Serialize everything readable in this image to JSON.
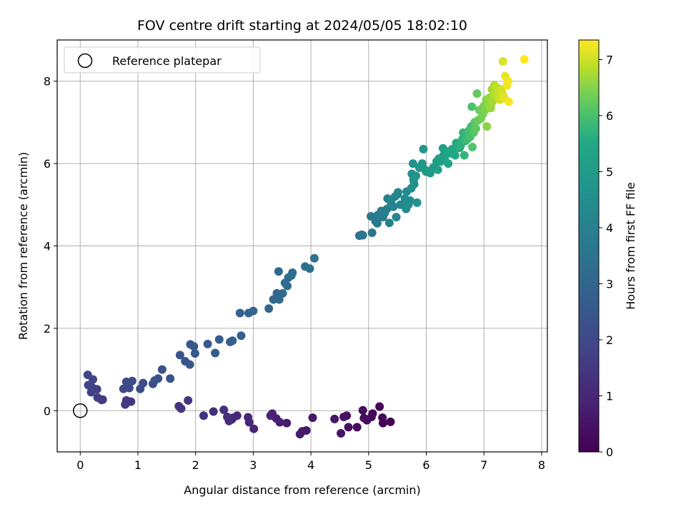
{
  "chart_data": {
    "type": "scatter",
    "title": "FOV centre drift starting at 2024/05/05 18:02:10",
    "xlabel": "Angular distance from reference (arcmin)",
    "ylabel": "Rotation from reference (arcmin)",
    "xlim": [
      -0.4,
      8.1
    ],
    "ylim": [
      -1.0,
      9.0
    ],
    "xticks": [
      "0",
      "1",
      "2",
      "3",
      "4",
      "5",
      "6",
      "7",
      "8"
    ],
    "yticks": [
      "0",
      "2",
      "4",
      "6",
      "8"
    ],
    "grid": true,
    "legend": {
      "placement": "top-left",
      "entries": [
        "Reference platepar"
      ]
    },
    "reference_point": {
      "x": 0,
      "y": 0,
      "label": "Reference platepar"
    },
    "colorbar": {
      "label": "Hours from first FF file",
      "range": [
        0,
        7.35
      ],
      "ticks": [
        "0",
        "1",
        "2",
        "3",
        "4",
        "5",
        "6",
        "7"
      ],
      "colormap": "viridis"
    },
    "series": [
      {
        "points": [
          [
            5.38,
            -0.27
          ],
          [
            5.25,
            -0.3
          ],
          [
            5.24,
            -0.17
          ],
          [
            5.19,
            0.1
          ],
          [
            5.07,
            -0.07
          ],
          [
            5.05,
            -0.15
          ],
          [
            4.97,
            -0.23
          ],
          [
            4.92,
            -0.18
          ],
          [
            4.9,
            0.01
          ],
          [
            4.8,
            -0.4
          ],
          [
            4.65,
            -0.4
          ],
          [
            4.62,
            -0.12
          ],
          [
            4.57,
            -0.15
          ],
          [
            4.52,
            -0.55
          ],
          [
            4.41,
            -0.2
          ],
          [
            4.03,
            -0.17
          ],
          [
            3.92,
            -0.48
          ],
          [
            3.85,
            -0.5
          ],
          [
            3.81,
            -0.57
          ],
          [
            3.58,
            -0.3
          ],
          [
            3.46,
            -0.28
          ],
          [
            3.4,
            -0.19
          ],
          [
            3.33,
            -0.07
          ],
          [
            3.3,
            -0.12
          ],
          [
            3.01,
            -0.44
          ],
          [
            2.93,
            -0.28
          ],
          [
            2.91,
            -0.16
          ],
          [
            2.72,
            -0.12
          ],
          [
            2.65,
            -0.17
          ],
          [
            2.63,
            -0.21
          ],
          [
            2.58,
            -0.25
          ],
          [
            2.55,
            -0.15
          ],
          [
            2.49,
            0.02
          ],
          [
            2.31,
            -0.02
          ],
          [
            2.14,
            -0.12
          ],
          [
            1.75,
            0.05
          ],
          [
            1.71,
            0.11
          ],
          [
            1.87,
            0.25
          ],
          [
            0.88,
            0.22
          ],
          [
            0.8,
            0.25
          ],
          [
            0.78,
            0.15
          ],
          [
            0.39,
            0.27
          ],
          [
            0.37,
            0.26
          ],
          [
            0.3,
            0.32
          ],
          [
            0.19,
            0.45
          ],
          [
            0.29,
            0.52
          ],
          [
            0.22,
            0.55
          ],
          [
            0.18,
            0.6
          ],
          [
            0.14,
            0.62
          ],
          [
            0.22,
            0.76
          ],
          [
            0.13,
            0.87
          ],
          [
            0.75,
            0.53
          ],
          [
            0.85,
            0.55
          ],
          [
            0.8,
            0.7
          ],
          [
            0.9,
            0.72
          ],
          [
            1.04,
            0.53
          ],
          [
            1.09,
            0.67
          ],
          [
            1.26,
            0.65
          ],
          [
            1.29,
            0.73
          ],
          [
            1.35,
            0.78
          ],
          [
            1.42,
            1.0
          ],
          [
            1.56,
            0.78
          ],
          [
            1.73,
            1.35
          ],
          [
            1.82,
            1.2
          ],
          [
            1.9,
            1.12
          ],
          [
            1.91,
            1.61
          ],
          [
            1.97,
            1.56
          ],
          [
            1.99,
            1.39
          ],
          [
            2.21,
            1.62
          ],
          [
            2.34,
            1.4
          ],
          [
            2.41,
            1.73
          ],
          [
            2.6,
            1.67
          ],
          [
            2.64,
            1.7
          ],
          [
            2.79,
            1.82
          ],
          [
            2.77,
            2.37
          ],
          [
            2.92,
            2.37
          ],
          [
            3.0,
            2.42
          ],
          [
            3.27,
            2.48
          ],
          [
            3.35,
            2.7
          ],
          [
            3.41,
            2.85
          ],
          [
            3.44,
            3.38
          ],
          [
            3.45,
            2.7
          ],
          [
            3.51,
            2.85
          ],
          [
            3.55,
            3.1
          ],
          [
            3.59,
            3.03
          ],
          [
            3.61,
            3.23
          ],
          [
            3.66,
            3.28
          ],
          [
            3.68,
            3.35
          ],
          [
            3.9,
            3.5
          ],
          [
            3.98,
            3.45
          ],
          [
            4.06,
            3.7
          ],
          [
            4.84,
            4.25
          ],
          [
            4.88,
            4.27
          ],
          [
            4.9,
            4.26
          ],
          [
            5.06,
            4.32
          ],
          [
            5.04,
            4.72
          ],
          [
            5.12,
            4.6
          ],
          [
            5.15,
            4.55
          ],
          [
            5.16,
            4.75
          ],
          [
            5.22,
            4.85
          ],
          [
            5.25,
            4.7
          ],
          [
            5.28,
            4.8
          ],
          [
            5.32,
            4.9
          ],
          [
            5.33,
            5.15
          ],
          [
            5.36,
            4.56
          ],
          [
            5.39,
            5.05
          ],
          [
            5.43,
            4.95
          ],
          [
            5.46,
            5.2
          ],
          [
            5.48,
            4.7
          ],
          [
            5.5,
            5.25
          ],
          [
            5.51,
            5.3
          ],
          [
            5.55,
            5.0
          ],
          [
            5.63,
            5.15
          ],
          [
            5.65,
            4.9
          ],
          [
            5.66,
            5.32
          ],
          [
            5.69,
            5.0
          ],
          [
            5.72,
            5.1
          ],
          [
            5.74,
            5.4
          ],
          [
            5.75,
            5.75
          ],
          [
            5.77,
            6.0
          ],
          [
            5.78,
            5.6
          ],
          [
            5.79,
            5.5
          ],
          [
            5.82,
            5.7
          ],
          [
            5.84,
            5.05
          ],
          [
            5.88,
            5.9
          ],
          [
            5.93,
            6.0
          ],
          [
            5.95,
            6.35
          ],
          [
            5.98,
            5.85
          ],
          [
            6.0,
            5.8
          ],
          [
            6.07,
            5.77
          ],
          [
            6.12,
            5.9
          ],
          [
            6.18,
            6.05
          ],
          [
            6.2,
            5.85
          ],
          [
            6.22,
            6.12
          ],
          [
            6.25,
            6.05
          ],
          [
            6.29,
            6.37
          ],
          [
            6.3,
            6.2
          ],
          [
            6.32,
            6.15
          ],
          [
            6.38,
            6.0
          ],
          [
            6.4,
            6.3
          ],
          [
            6.42,
            6.25
          ],
          [
            6.45,
            6.35
          ],
          [
            6.48,
            6.28
          ],
          [
            6.5,
            6.2
          ],
          [
            6.52,
            6.5
          ],
          [
            6.55,
            6.45
          ],
          [
            6.58,
            6.38
          ],
          [
            6.6,
            6.45
          ],
          [
            6.63,
            6.6
          ],
          [
            6.64,
            6.75
          ],
          [
            6.66,
            6.2
          ],
          [
            6.68,
            6.55
          ],
          [
            6.7,
            6.72
          ],
          [
            6.72,
            6.6
          ],
          [
            6.74,
            6.8
          ],
          [
            6.76,
            6.65
          ],
          [
            6.78,
            6.9
          ],
          [
            6.79,
            7.38
          ],
          [
            6.8,
            6.4
          ],
          [
            6.82,
            6.75
          ],
          [
            6.84,
            7.0
          ],
          [
            6.86,
            6.85
          ],
          [
            6.88,
            7.7
          ],
          [
            6.9,
            7.05
          ],
          [
            6.92,
            7.3
          ],
          [
            6.95,
            7.1
          ],
          [
            6.98,
            7.2
          ],
          [
            7.0,
            7.4
          ],
          [
            7.02,
            7.3
          ],
          [
            7.04,
            7.55
          ],
          [
            7.05,
            6.9
          ],
          [
            7.07,
            7.45
          ],
          [
            7.1,
            7.6
          ],
          [
            7.12,
            7.35
          ],
          [
            7.14,
            7.8
          ],
          [
            7.15,
            7.5
          ],
          [
            7.17,
            7.65
          ],
          [
            7.18,
            7.9
          ],
          [
            7.2,
            7.7
          ],
          [
            7.22,
            7.85
          ],
          [
            7.24,
            7.6
          ],
          [
            7.26,
            7.75
          ],
          [
            7.28,
            7.55
          ],
          [
            7.3,
            7.8
          ],
          [
            7.32,
            7.7
          ],
          [
            7.33,
            8.48
          ],
          [
            7.35,
            7.6
          ],
          [
            7.37,
            8.12
          ],
          [
            7.4,
            7.9
          ],
          [
            7.42,
            8.0
          ],
          [
            7.43,
            7.5
          ],
          [
            7.7,
            8.53
          ]
        ]
      }
    ]
  }
}
